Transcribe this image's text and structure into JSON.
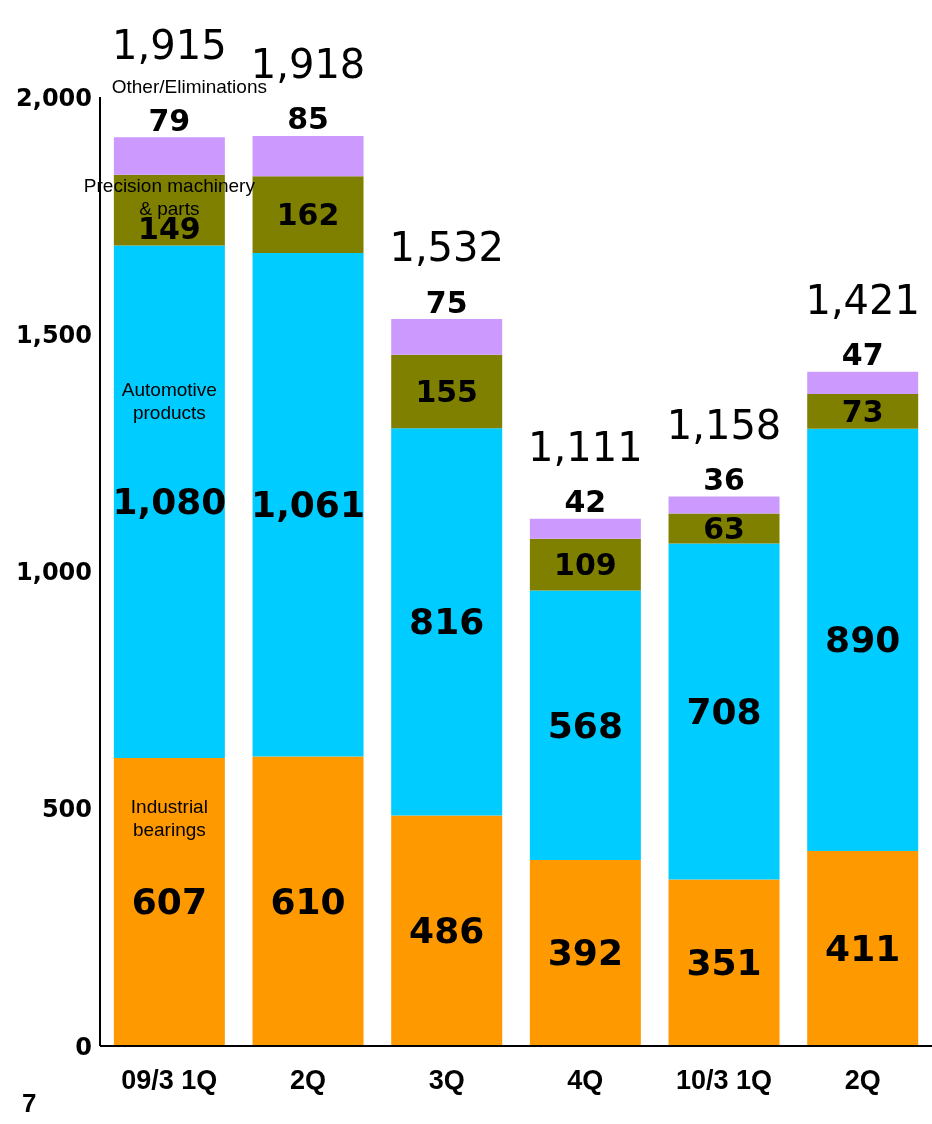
{
  "chart_data": {
    "type": "bar",
    "stacked": true,
    "categories": [
      "09/3 1Q",
      "2Q",
      "3Q",
      "4Q",
      "10/3 1Q",
      "2Q"
    ],
    "series": [
      {
        "name": "Industrial bearings",
        "color": "#ff9900",
        "values": [
          607,
          610,
          486,
          392,
          351,
          411
        ],
        "value_labels": [
          "607",
          "610",
          "486",
          "392",
          "351",
          "411"
        ]
      },
      {
        "name": "Automotive products",
        "color": "#00ccff",
        "values": [
          1080,
          1061,
          816,
          568,
          708,
          890
        ],
        "value_labels": [
          "1,080",
          "1,061",
          "816",
          "568",
          "708",
          "890"
        ]
      },
      {
        "name": "Precision machinery & parts",
        "color": "#808000",
        "values": [
          149,
          162,
          155,
          109,
          63,
          73
        ],
        "value_labels": [
          "149",
          "162",
          "155",
          "109",
          "63",
          "73"
        ]
      },
      {
        "name": "Other/Eliminations",
        "color": "#cc99ff",
        "values": [
          79,
          85,
          75,
          42,
          36,
          47
        ],
        "value_labels": [
          "79",
          "85",
          "75",
          "42",
          "36",
          "47"
        ]
      }
    ],
    "totals": [
      "1,915",
      "1,918",
      "1,532",
      "1,111",
      "1,158",
      "1,421"
    ],
    "ylim": [
      0,
      2000
    ],
    "yticks": [
      0,
      {
        "value": 500,
        "label": "500"
      },
      {
        "value": 1000,
        "label": "1,000"
      },
      {
        "value": 1500,
        "label": "1,500"
      },
      {
        "value": 2000,
        "label": "2,000"
      }
    ],
    "annotations": [
      "7"
    ]
  }
}
